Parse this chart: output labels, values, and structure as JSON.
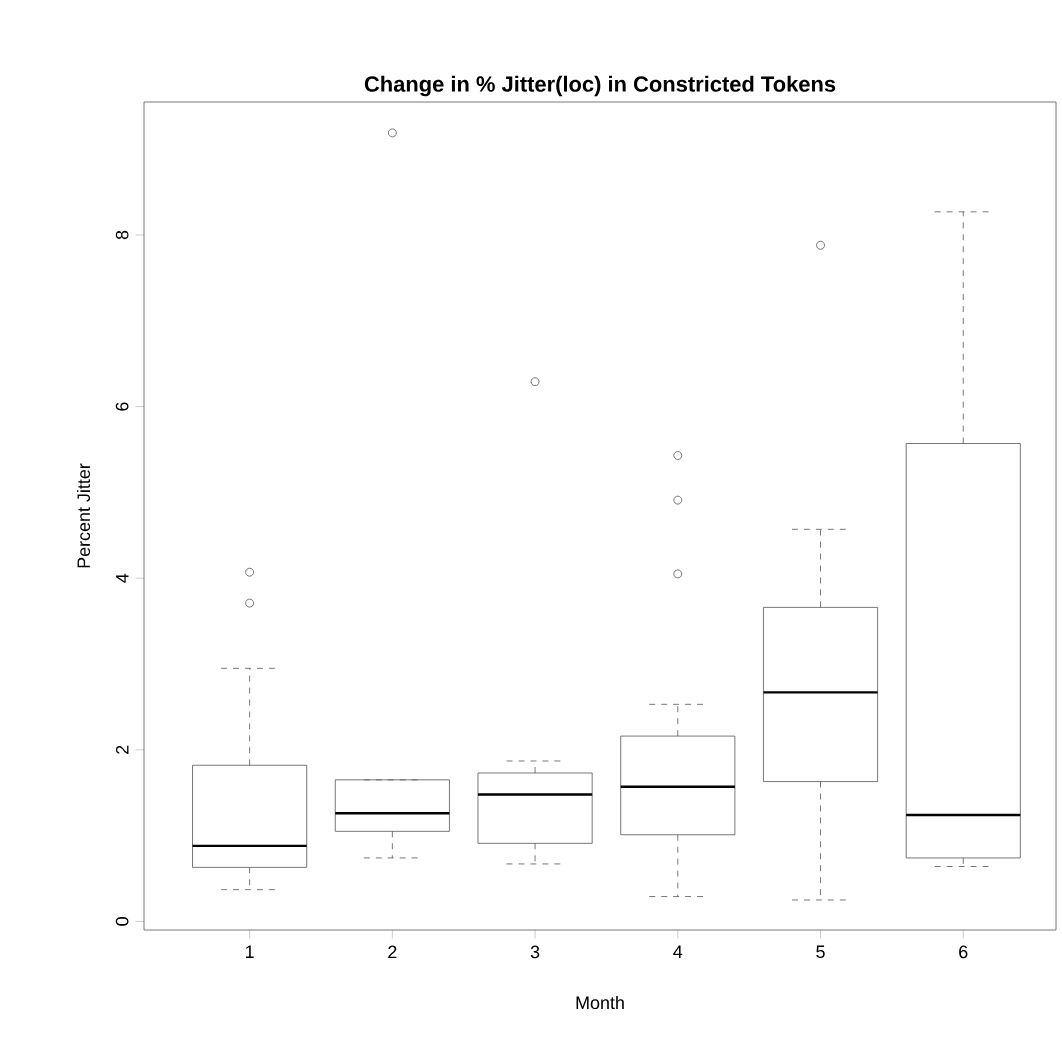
{
  "chart_data": {
    "type": "box",
    "title": "Change in % Jitter(loc) in Constricted Tokens",
    "xlabel": "Month",
    "ylabel": "Percent Jitter",
    "categories": [
      "1",
      "2",
      "3",
      "4",
      "5",
      "6"
    ],
    "boxes": [
      {
        "low": 0.37,
        "q1": 0.63,
        "median": 0.88,
        "q3": 1.82,
        "high": 2.95,
        "outliers": [
          3.71,
          4.07
        ]
      },
      {
        "low": 0.74,
        "q1": 1.05,
        "median": 1.26,
        "q3": 1.65,
        "high": 1.65,
        "outliers": [
          9.19
        ]
      },
      {
        "low": 0.67,
        "q1": 0.91,
        "median": 1.48,
        "q3": 1.73,
        "high": 1.87,
        "outliers": [
          6.29
        ]
      },
      {
        "low": 0.29,
        "q1": 1.01,
        "median": 1.57,
        "q3": 2.16,
        "high": 2.53,
        "outliers": [
          4.05,
          4.91,
          5.43
        ]
      },
      {
        "low": 0.25,
        "q1": 1.63,
        "median": 2.67,
        "q3": 3.66,
        "high": 4.57,
        "outliers": [
          7.88
        ]
      },
      {
        "low": 0.64,
        "q1": 0.74,
        "median": 1.24,
        "q3": 5.57,
        "high": 8.27
      }
    ],
    "ylim": [
      -0.1,
      9.55
    ],
    "yticks": [
      0,
      2,
      4,
      6,
      8
    ],
    "color": "#555555",
    "marker": "circle"
  }
}
